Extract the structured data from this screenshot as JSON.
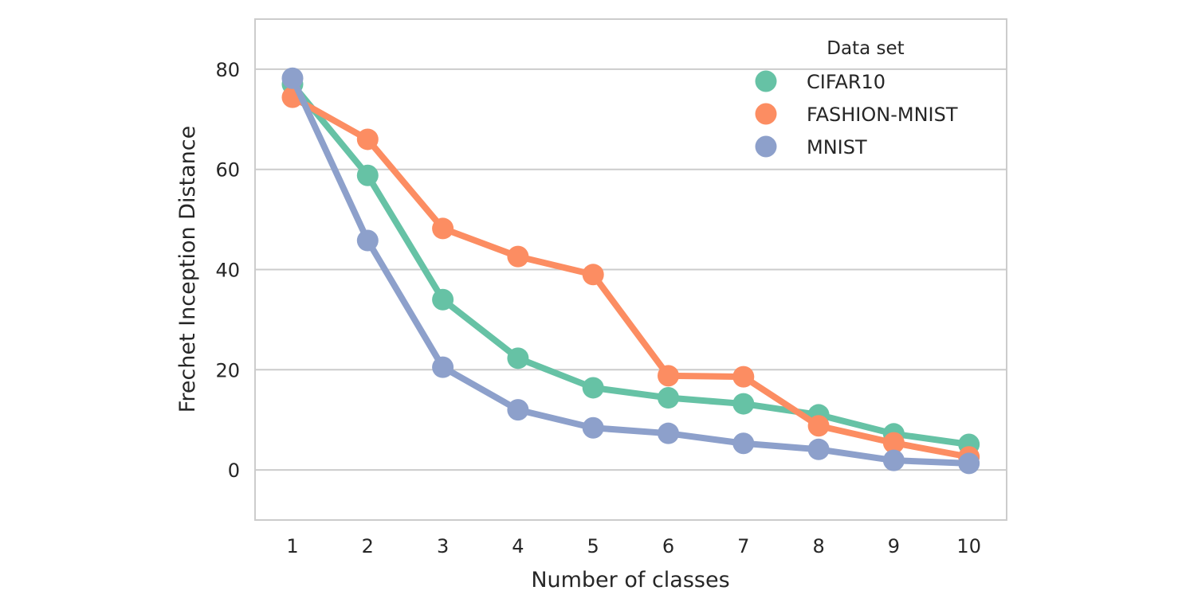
{
  "chart_data": {
    "type": "line",
    "xlabel": "Number of classes",
    "ylabel": "Frechet Inception Distance",
    "categories": [
      "1",
      "2",
      "3",
      "4",
      "5",
      "6",
      "7",
      "8",
      "9",
      "10"
    ],
    "ylim": [
      -10,
      90
    ],
    "yticks": [
      0,
      20,
      40,
      60,
      80
    ],
    "grid": "horizontal",
    "legend": {
      "title": "Data set",
      "placement": "top-right"
    },
    "series": [
      {
        "name": "CIFAR10",
        "color": "#66c2a5",
        "values": [
          77.0,
          58.8,
          34.0,
          22.3,
          16.4,
          14.4,
          13.2,
          11.0,
          7.2,
          5.1
        ]
      },
      {
        "name": "FASHION-MNIST",
        "color": "#fc8d62",
        "values": [
          74.4,
          66.0,
          48.2,
          42.6,
          39.0,
          18.8,
          18.6,
          8.8,
          5.4,
          2.6
        ]
      },
      {
        "name": "MNIST",
        "color": "#8da0cb",
        "values": [
          78.2,
          45.8,
          20.5,
          12.0,
          8.4,
          7.3,
          5.3,
          4.1,
          1.9,
          1.3
        ]
      }
    ]
  }
}
